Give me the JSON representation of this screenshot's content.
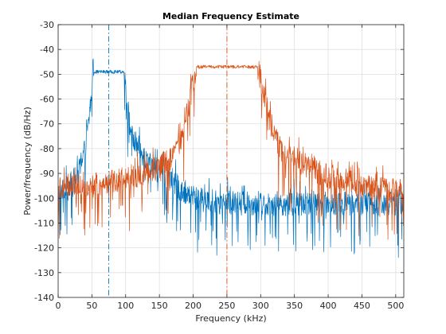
{
  "chart_data": {
    "type": "line",
    "title": "Median Frequency Estimate",
    "xlabel": "Frequency (kHz)",
    "ylabel": "Power/frequency (dB/Hz)",
    "xlim": [
      0,
      512
    ],
    "ylim": [
      -140,
      -30
    ],
    "xticks": [
      0,
      50,
      100,
      150,
      200,
      250,
      300,
      350,
      400,
      450,
      500
    ],
    "yticks": [
      -140,
      -130,
      -120,
      -110,
      -100,
      -90,
      -80,
      -70,
      -60,
      -50,
      -40,
      -30
    ],
    "grid": true,
    "legend": "none",
    "series": [
      {
        "color": "#0072bd",
        "style": "noisy-psd",
        "passband_center_khz": 75,
        "passband_half_width_khz": 22,
        "peak_level_db": -49,
        "noise_floor_db": -102,
        "points": [
          [
            0,
            -98
          ],
          [
            10,
            -96
          ],
          [
            20,
            -94
          ],
          [
            30,
            -90
          ],
          [
            35,
            -86
          ],
          [
            40,
            -80
          ],
          [
            45,
            -70
          ],
          [
            50,
            -56
          ],
          [
            53,
            -49
          ],
          [
            60,
            -49
          ],
          [
            75,
            -49
          ],
          [
            90,
            -49
          ],
          [
            97,
            -49
          ],
          [
            100,
            -56
          ],
          [
            105,
            -68
          ],
          [
            110,
            -76
          ],
          [
            120,
            -80
          ],
          [
            130,
            -84
          ],
          [
            140,
            -87
          ],
          [
            150,
            -90
          ],
          [
            160,
            -92
          ],
          [
            170,
            -94
          ],
          [
            180,
            -96
          ],
          [
            190,
            -98
          ],
          [
            200,
            -100
          ],
          [
            250,
            -102
          ],
          [
            300,
            -102
          ],
          [
            350,
            -102
          ],
          [
            400,
            -102
          ],
          [
            450,
            -102
          ],
          [
            512,
            -102
          ]
        ]
      },
      {
        "color": "#d95319",
        "style": "noisy-psd",
        "passband_center_khz": 250,
        "passband_half_width_khz": 45,
        "peak_level_db": -47,
        "noise_floor_db": -95,
        "points": [
          [
            0,
            -95
          ],
          [
            50,
            -95
          ],
          [
            100,
            -92
          ],
          [
            130,
            -90
          ],
          [
            150,
            -87
          ],
          [
            170,
            -84
          ],
          [
            185,
            -75
          ],
          [
            195,
            -60
          ],
          [
            205,
            -47
          ],
          [
            210,
            -47
          ],
          [
            250,
            -47
          ],
          [
            290,
            -47
          ],
          [
            295,
            -47
          ],
          [
            300,
            -52
          ],
          [
            310,
            -65
          ],
          [
            320,
            -75
          ],
          [
            330,
            -80
          ],
          [
            350,
            -84
          ],
          [
            375,
            -88
          ],
          [
            400,
            -91
          ],
          [
            425,
            -93
          ],
          [
            450,
            -95
          ],
          [
            475,
            -96
          ],
          [
            500,
            -97
          ],
          [
            512,
            -97
          ]
        ]
      }
    ],
    "vlines": [
      {
        "x": 75,
        "color": "#0072bd",
        "style": "dash-dot"
      },
      {
        "x": 250,
        "color": "#d95319",
        "style": "dash-dot"
      }
    ]
  }
}
